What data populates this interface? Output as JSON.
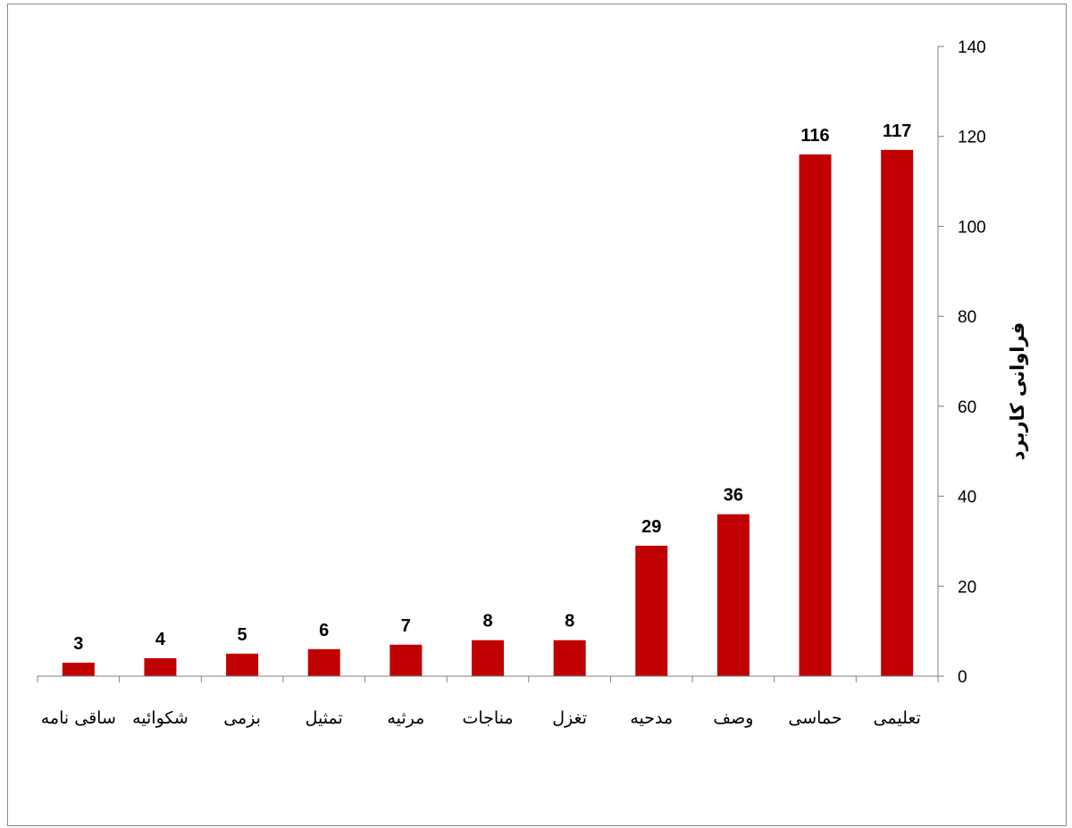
{
  "chart_data": {
    "type": "bar",
    "categories": [
      "تعلیمی",
      "حماسی",
      "وصف",
      "مدحیه",
      "تغزل",
      "مناجات",
      "مرثیه",
      "تمثیل",
      "بزمی",
      "شکوائیه",
      "ساقی نامه"
    ],
    "values": [
      117,
      116,
      36,
      29,
      8,
      8,
      7,
      6,
      5,
      4,
      3
    ],
    "data_labels": [
      "117",
      "116",
      "36",
      "29",
      "8",
      "8",
      "7",
      "6",
      "5",
      "4",
      "3"
    ],
    "ylabel": "فراوانی کاربرد",
    "xlabel": "",
    "ylim": [
      0,
      140
    ],
    "yticks": [
      "0",
      "20",
      "40",
      "60",
      "80",
      "100",
      "120",
      "140"
    ],
    "y_axis_position": "right",
    "category_order": "right-to-left",
    "bar_color": "#c00000",
    "grid": false,
    "legend": "none"
  }
}
